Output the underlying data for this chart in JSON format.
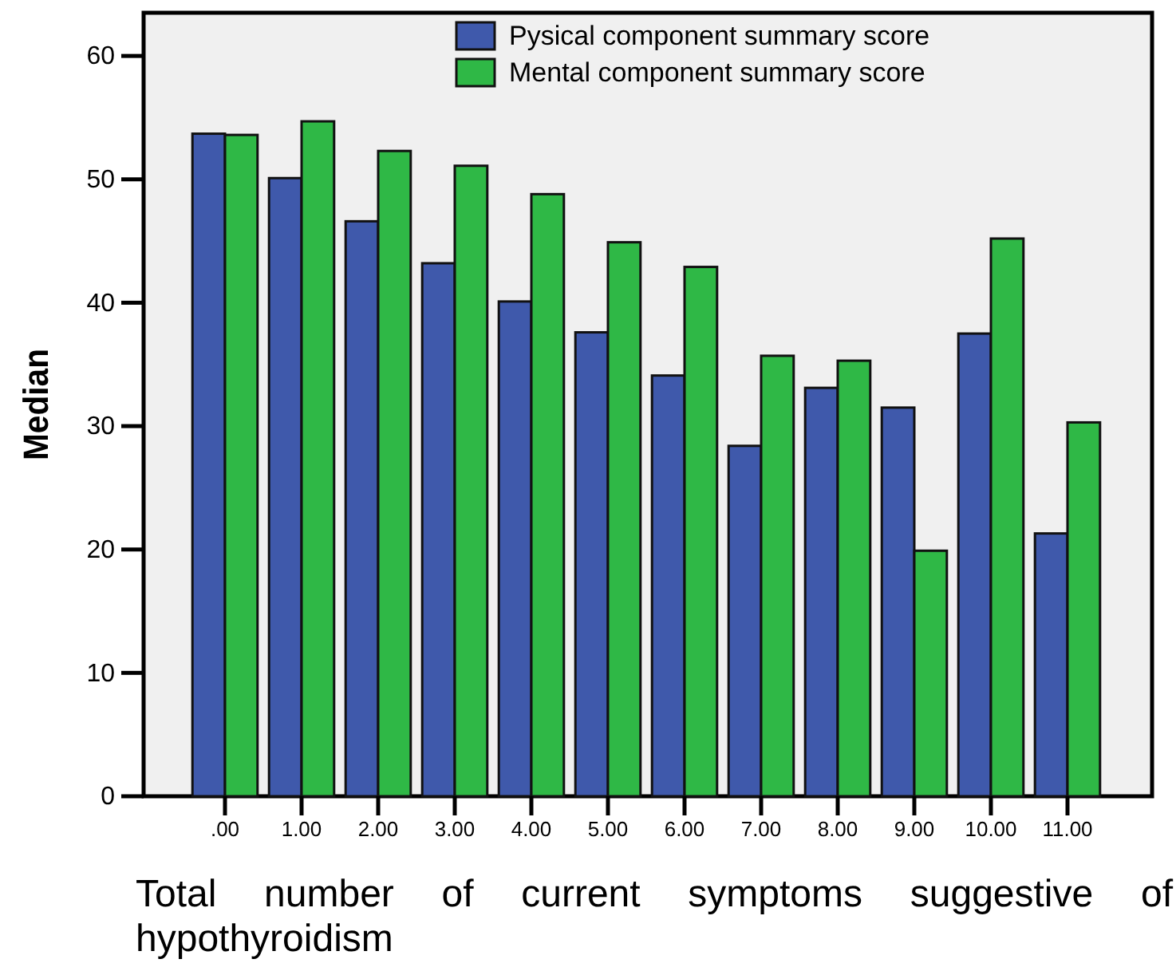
{
  "chart_data": {
    "type": "bar",
    "xlabel": "Total number of current symptoms suggestive of hypothyroidism",
    "ylabel": "Median",
    "categories": [
      ".00",
      "1.00",
      "2.00",
      "3.00",
      "4.00",
      "5.00",
      "6.00",
      "7.00",
      "8.00",
      "9.00",
      "10.00",
      "11.00"
    ],
    "series": [
      {
        "name": "Pysical component summary score",
        "color": "#3f59ab",
        "values": [
          53.7,
          50.1,
          46.6,
          43.2,
          40.1,
          37.6,
          34.1,
          28.4,
          33.1,
          31.5,
          37.5,
          21.3
        ]
      },
      {
        "name": "Mental component summary score",
        "color": "#2fb846",
        "values": [
          53.6,
          54.7,
          52.3,
          51.1,
          48.8,
          44.9,
          42.9,
          35.7,
          35.3,
          19.9,
          45.2,
          30.3
        ]
      }
    ],
    "ylim": [
      0,
      63.5
    ],
    "yticks": [
      0,
      10,
      20,
      30,
      40,
      50,
      60
    ],
    "grid": false,
    "legend": "top right"
  }
}
